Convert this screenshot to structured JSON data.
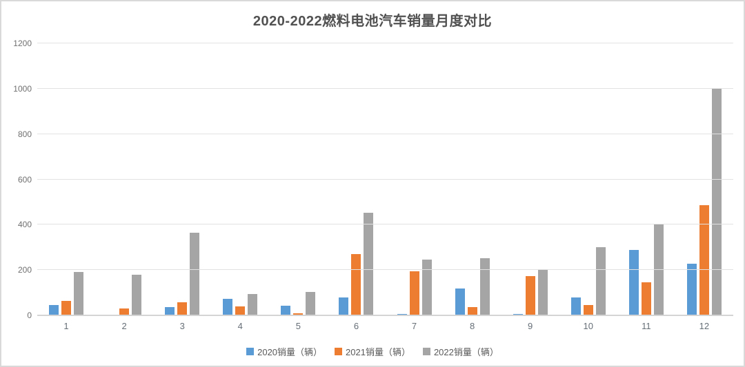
{
  "frame": {
    "background": "#ffffff",
    "border_color": "#d9d9d9"
  },
  "chart_data": {
    "type": "bar",
    "title": "2020-2022燃料电池汽车销量月度对比",
    "categories": [
      "1",
      "2",
      "3",
      "4",
      "5",
      "6",
      "7",
      "8",
      "9",
      "10",
      "11",
      "12"
    ],
    "series": [
      {
        "key": "2020",
        "name": "2020销量（辆）",
        "color": "#5B9BD5",
        "values": [
          45,
          0,
          35,
          72,
          42,
          80,
          7,
          120,
          7,
          78,
          290,
          228
        ]
      },
      {
        "key": "2021",
        "name": "2021销量（辆）",
        "color": "#ED7D31",
        "values": [
          63,
          30,
          58,
          40,
          10,
          270,
          195,
          38,
          173,
          46,
          145,
          485
        ]
      },
      {
        "key": "2022",
        "name": "2022销量（辆）",
        "color": "#A5A5A5",
        "values": [
          190,
          178,
          365,
          95,
          103,
          452,
          245,
          253,
          200,
          300,
          402,
          1000
        ]
      }
    ],
    "xlabel": "",
    "ylabel": "",
    "ylim": [
      0,
      1200
    ],
    "yticks": [
      0,
      200,
      400,
      600,
      800,
      1000,
      1200
    ],
    "grid": true,
    "legend_position": "bottom",
    "colors": {
      "gridline": "#e2e2e2",
      "axis_line": "#d4d4d4",
      "tick_text": "#6f6f6f",
      "title_text": "#515151",
      "legend_text": "#595959"
    }
  }
}
